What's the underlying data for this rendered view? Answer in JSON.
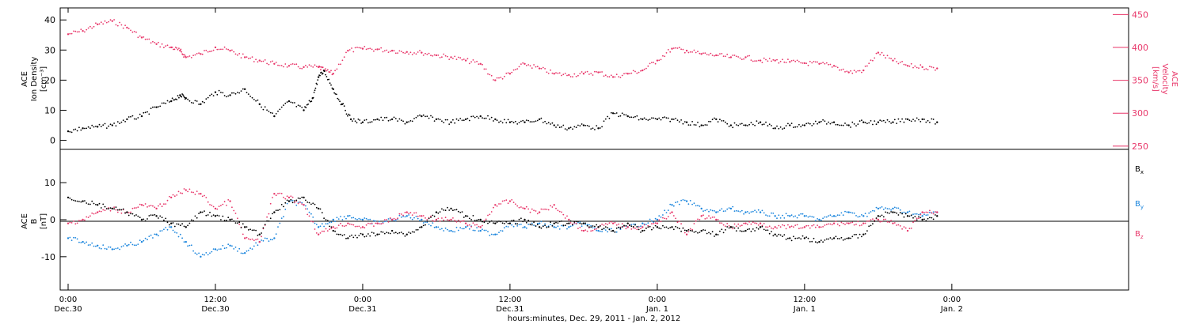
{
  "chart_data": [
    {
      "type": "scatter",
      "panel": "top",
      "ylabel_lines": [
        "ACE",
        "Ion Density",
        "[cm⁻³]"
      ],
      "ylabel2_lines": [
        "ACE",
        "Velocity",
        "[km/s]"
      ],
      "ylim": [
        -3,
        44
      ],
      "ylim2": [
        245,
        460
      ],
      "yticks": [
        0,
        10,
        20,
        30,
        40
      ],
      "yticks2": [
        250,
        300,
        350,
        400,
        450
      ],
      "colors": {
        "density": "#000000",
        "velocity": "#e8376a"
      },
      "series": [
        {
          "axis": "left",
          "color": "#000000",
          "x": [
            0,
            0.05,
            0.1,
            0.15,
            0.2,
            0.25,
            0.3,
            0.35,
            0.38,
            0.4,
            0.45,
            0.5,
            0.55,
            0.6,
            0.65,
            0.7,
            0.75,
            0.8,
            0.83,
            0.85,
            0.87,
            0.9,
            0.93,
            0.96,
            1.0,
            1.05,
            1.1,
            1.15,
            1.2,
            1.25,
            1.3,
            1.35,
            1.4,
            1.45,
            1.5,
            1.55,
            1.6,
            1.65,
            1.7,
            1.75,
            1.8,
            1.85,
            1.9,
            1.95,
            2.0,
            2.05,
            2.1,
            2.15,
            2.2,
            2.25,
            2.3,
            2.35,
            2.4,
            2.45,
            2.5,
            2.55,
            2.6,
            2.65,
            2.7,
            2.75,
            2.8,
            2.85,
            2.9,
            2.95
          ],
          "y": [
            3,
            4,
            4.5,
            5,
            7,
            8,
            11,
            13,
            15,
            14,
            12,
            16,
            15,
            17,
            12,
            8,
            13,
            10,
            14,
            21,
            23,
            17,
            12,
            7,
            6,
            7,
            7,
            6,
            8,
            7,
            6,
            7,
            8,
            7,
            6,
            6,
            7,
            5,
            4,
            5,
            4,
            9,
            8,
            7,
            7,
            7,
            6,
            5,
            7,
            5,
            5,
            6,
            4,
            5,
            5,
            6,
            6,
            5,
            6,
            6,
            6,
            7,
            7,
            6
          ]
        },
        {
          "axis": "right",
          "color": "#e8376a",
          "x": [
            0,
            0.05,
            0.1,
            0.15,
            0.2,
            0.25,
            0.3,
            0.35,
            0.38,
            0.4,
            0.45,
            0.5,
            0.55,
            0.6,
            0.65,
            0.7,
            0.75,
            0.8,
            0.85,
            0.87,
            0.9,
            0.95,
            1.0,
            1.05,
            1.1,
            1.15,
            1.2,
            1.25,
            1.3,
            1.35,
            1.4,
            1.45,
            1.5,
            1.55,
            1.6,
            1.65,
            1.7,
            1.75,
            1.8,
            1.85,
            1.9,
            1.95,
            2.0,
            2.05,
            2.1,
            2.15,
            2.2,
            2.25,
            2.3,
            2.35,
            2.4,
            2.45,
            2.5,
            2.55,
            2.6,
            2.65,
            2.7,
            2.75,
            2.8,
            2.85,
            2.9,
            2.95
          ],
          "y": [
            420,
            425,
            435,
            440,
            430,
            415,
            405,
            400,
            395,
            385,
            390,
            400,
            395,
            385,
            380,
            375,
            372,
            370,
            370,
            365,
            360,
            395,
            398,
            397,
            395,
            393,
            392,
            388,
            385,
            380,
            375,
            350,
            360,
            375,
            368,
            360,
            358,
            360,
            362,
            355,
            360,
            365,
            380,
            398,
            395,
            390,
            388,
            385,
            385,
            380,
            380,
            378,
            376,
            375,
            372,
            362,
            365,
            392,
            380,
            372,
            370,
            368
          ]
        }
      ]
    },
    {
      "type": "scatter",
      "panel": "bottom",
      "ylabel_lines": [
        "ACE",
        "B",
        "[nT]"
      ],
      "ylim": [
        -19,
        19
      ],
      "yticks": [
        -10,
        0,
        10
      ],
      "legend_position": "right",
      "legend": [
        {
          "label": "B",
          "sub": "x",
          "color": "#000000"
        },
        {
          "label": "B",
          "sub": "y",
          "color": "#1a85dd"
        },
        {
          "label": "B",
          "sub": "z",
          "color": "#e8376a"
        }
      ],
      "series": [
        {
          "axis": "left",
          "color": "#000000",
          "x": [
            0,
            0.05,
            0.1,
            0.15,
            0.2,
            0.25,
            0.3,
            0.35,
            0.4,
            0.45,
            0.5,
            0.55,
            0.6,
            0.65,
            0.7,
            0.75,
            0.8,
            0.85,
            0.9,
            0.95,
            1.0,
            1.05,
            1.1,
            1.15,
            1.2,
            1.25,
            1.3,
            1.35,
            1.4,
            1.45,
            1.5,
            1.55,
            1.6,
            1.65,
            1.7,
            1.75,
            1.8,
            1.85,
            1.9,
            1.95,
            2.0,
            2.05,
            2.1,
            2.15,
            2.2,
            2.25,
            2.3,
            2.35,
            2.4,
            2.45,
            2.5,
            2.55,
            2.6,
            2.65,
            2.7,
            2.75,
            2.8,
            2.85,
            2.9,
            2.95
          ],
          "y": [
            6,
            5,
            4,
            3,
            2,
            0,
            1,
            -1,
            -2,
            2,
            1,
            0,
            -2,
            -4,
            2,
            5,
            6,
            3,
            -3,
            -5,
            -4,
            -4,
            -3,
            -4,
            -2,
            2,
            3,
            1,
            0,
            -1,
            -1,
            0,
            -2,
            -1,
            -1,
            -1,
            -2,
            -3,
            -1,
            -3,
            -2,
            -2,
            -3,
            -3,
            -4,
            -2,
            -3,
            -2,
            -4,
            -5,
            -5,
            -6,
            -5,
            -5,
            -4,
            1,
            2,
            1,
            0,
            1
          ]
        },
        {
          "axis": "left",
          "color": "#1a85dd",
          "x": [
            0,
            0.05,
            0.1,
            0.15,
            0.2,
            0.25,
            0.3,
            0.35,
            0.4,
            0.45,
            0.5,
            0.55,
            0.6,
            0.65,
            0.7,
            0.75,
            0.8,
            0.85,
            0.9,
            0.95,
            1.0,
            1.05,
            1.1,
            1.15,
            1.2,
            1.25,
            1.3,
            1.35,
            1.4,
            1.45,
            1.5,
            1.55,
            1.6,
            1.65,
            1.7,
            1.75,
            1.8,
            1.85,
            1.9,
            1.95,
            2.0,
            2.05,
            2.1,
            2.15,
            2.2,
            2.25,
            2.3,
            2.35,
            2.4,
            2.45,
            2.5,
            2.55,
            2.6,
            2.65,
            2.7,
            2.75,
            2.8,
            2.85,
            2.9,
            2.95
          ],
          "y": [
            -5,
            -6,
            -7,
            -8,
            -7,
            -6,
            -4,
            -2,
            -6,
            -10,
            -8,
            -7,
            -9,
            -6,
            -5,
            5,
            4,
            -2,
            0,
            1,
            0,
            -1,
            0,
            1,
            0,
            -2,
            -3,
            -2,
            -3,
            -4,
            -1,
            -2,
            -1,
            -2,
            -2,
            -1,
            -3,
            -3,
            -2,
            -1,
            0,
            4,
            5,
            3,
            2,
            3,
            2,
            2,
            1,
            1,
            1,
            0,
            1,
            2,
            1,
            3,
            3,
            2,
            1,
            2
          ]
        },
        {
          "axis": "left",
          "color": "#e8376a",
          "x": [
            0,
            0.05,
            0.1,
            0.15,
            0.2,
            0.25,
            0.3,
            0.35,
            0.4,
            0.45,
            0.5,
            0.55,
            0.6,
            0.65,
            0.7,
            0.75,
            0.8,
            0.85,
            0.9,
            0.95,
            1.0,
            1.05,
            1.1,
            1.15,
            1.2,
            1.25,
            1.3,
            1.35,
            1.4,
            1.45,
            1.5,
            1.55,
            1.6,
            1.65,
            1.7,
            1.75,
            1.8,
            1.85,
            1.9,
            1.95,
            2.0,
            2.05,
            2.1,
            2.15,
            2.2,
            2.25,
            2.3,
            2.35,
            2.4,
            2.45,
            2.5,
            2.55,
            2.6,
            2.65,
            2.7,
            2.75,
            2.8,
            2.85,
            2.9,
            2.95
          ],
          "y": [
            -1,
            0,
            2,
            3,
            2,
            4,
            3,
            6,
            8,
            7,
            3,
            5,
            -5,
            -6,
            7,
            6,
            4,
            -4,
            -2,
            -1,
            -2,
            -1,
            0,
            2,
            1,
            0,
            0,
            -1,
            -2,
            4,
            5,
            3,
            2,
            4,
            0,
            -3,
            -2,
            -1,
            -2,
            -2,
            -1,
            2,
            -4,
            1,
            0,
            -2,
            -1,
            -1,
            -2,
            -2,
            -2,
            -2,
            -1,
            -1,
            -1,
            0,
            -1,
            -3,
            2,
            2
          ]
        }
      ]
    }
  ],
  "x_axis": {
    "range": [
      0,
      3.6
    ],
    "ticks": [
      {
        "x": 0,
        "top": "0:00",
        "bottom": "Dec.30"
      },
      {
        "x": 0.5,
        "top": "12:00",
        "bottom": "Dec.30"
      },
      {
        "x": 1.0,
        "top": "0:00",
        "bottom": "Dec.31"
      },
      {
        "x": 1.5,
        "top": "12:00",
        "bottom": "Dec.31"
      },
      {
        "x": 2.0,
        "top": "0:00",
        "bottom": "Jan. 1"
      },
      {
        "x": 2.5,
        "top": "12:00",
        "bottom": "Jan. 1"
      },
      {
        "x": 3.0,
        "top": "0:00",
        "bottom": "Jan. 2"
      }
    ],
    "label": "hours:minutes, Dec. 29, 2011 - Jan. 2, 2012"
  }
}
